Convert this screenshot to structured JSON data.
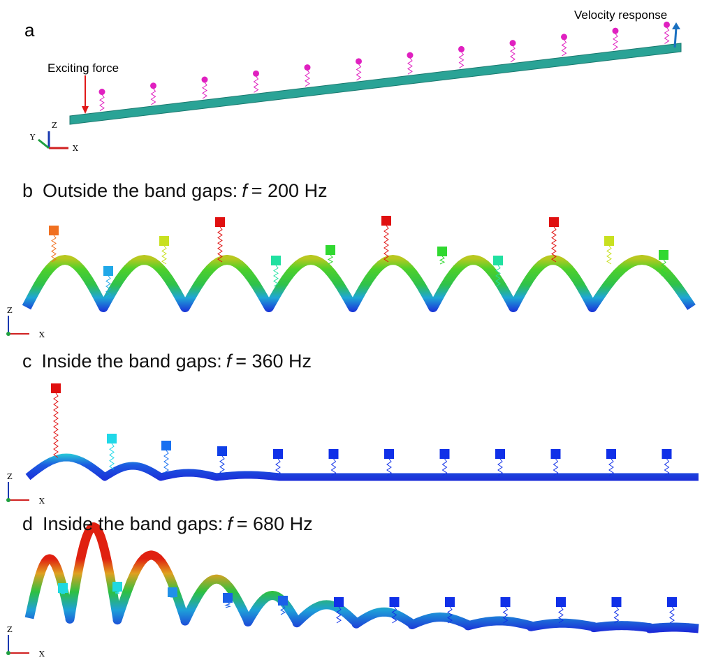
{
  "panels": [
    {
      "label": "a",
      "exciting": "Exciting force",
      "response": "Velocity response",
      "axes": {
        "z": "Z",
        "y": "Y",
        "x": "X"
      }
    },
    {
      "label": "b",
      "caption": {
        "prefix": "Outside the band gaps:",
        "symbol": "f",
        "suffix": "= 200 Hz"
      },
      "axes": {
        "z": "Z",
        "x": "X"
      }
    },
    {
      "label": "c",
      "caption": {
        "prefix": "Inside the band gaps:",
        "symbol": "f",
        "suffix": "= 360 Hz"
      },
      "axes": {
        "z": "Z",
        "x": "X"
      }
    },
    {
      "label": "d",
      "caption": {
        "prefix": "Inside the band gaps:",
        "symbol": "f",
        "suffix": "= 680 Hz"
      },
      "axes": {
        "z": "Z",
        "x": "X"
      }
    }
  ]
}
